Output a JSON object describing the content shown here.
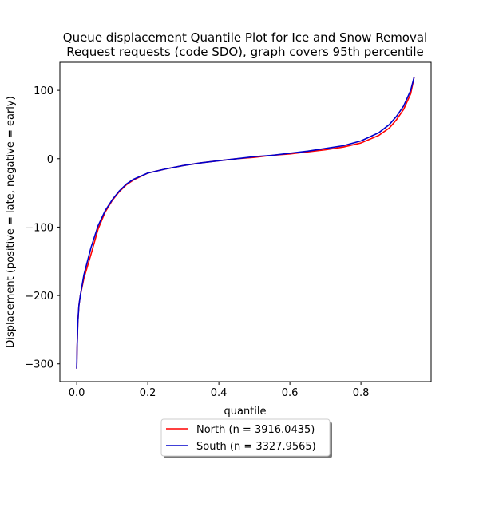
{
  "chart_data": {
    "type": "line",
    "title": [
      "Queue displacement Quantile Plot for Ice and Snow Removal",
      "Request  requests (code SDO), graph covers 95th percentile"
    ],
    "xlabel": "quantile",
    "ylabel": "Displacement (positive = late, negative = early)",
    "xlim": [
      -0.0475,
      0.9975
    ],
    "ylim": [
      -326,
      141
    ],
    "xticks": [
      0.0,
      0.2,
      0.4,
      0.6,
      0.8
    ],
    "xtick_labels": [
      "0.0",
      "0.2",
      "0.4",
      "0.6",
      "0.8"
    ],
    "yticks": [
      -300,
      -200,
      -100,
      0,
      100
    ],
    "ytick_labels": [
      "−300",
      "−200",
      "−100",
      "0",
      "100"
    ],
    "legend_position": "below",
    "grid": false,
    "series": [
      {
        "name": "North (n = 3916.0435)",
        "color": "#ff0000",
        "x": [
          0.0,
          0.001,
          0.003,
          0.006,
          0.01,
          0.02,
          0.04,
          0.06,
          0.08,
          0.1,
          0.12,
          0.14,
          0.16,
          0.2,
          0.25,
          0.3,
          0.35,
          0.4,
          0.45,
          0.5,
          0.55,
          0.6,
          0.65,
          0.7,
          0.75,
          0.8,
          0.85,
          0.88,
          0.9,
          0.92,
          0.94,
          0.95
        ],
        "y": [
          -307,
          -275,
          -240,
          -215,
          -200,
          -175,
          -140,
          -103,
          -78,
          -61,
          -48,
          -38,
          -31,
          -21,
          -15,
          -10,
          -6,
          -3,
          0,
          2,
          5,
          7,
          10,
          13,
          17,
          23,
          34,
          45,
          57,
          72,
          95,
          120
        ]
      },
      {
        "name": "South (n = 3327.9565)",
        "color": "#0000cc",
        "x": [
          0.0,
          0.001,
          0.003,
          0.006,
          0.01,
          0.02,
          0.04,
          0.06,
          0.08,
          0.1,
          0.12,
          0.14,
          0.16,
          0.2,
          0.25,
          0.3,
          0.35,
          0.4,
          0.45,
          0.5,
          0.55,
          0.6,
          0.65,
          0.7,
          0.75,
          0.8,
          0.85,
          0.88,
          0.9,
          0.92,
          0.94,
          0.95
        ],
        "y": [
          -307,
          -275,
          -240,
          -215,
          -200,
          -170,
          -130,
          -98,
          -76,
          -60,
          -47,
          -37,
          -30,
          -21,
          -15,
          -10,
          -6,
          -3,
          0,
          3,
          5,
          8,
          11,
          15,
          19,
          26,
          38,
          50,
          62,
          77,
          100,
          120
        ]
      }
    ]
  }
}
